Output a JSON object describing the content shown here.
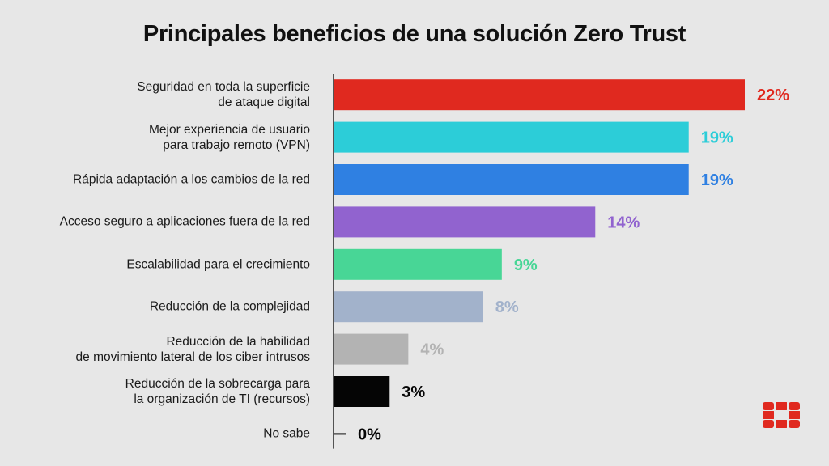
{
  "chart_data": {
    "type": "bar",
    "orientation": "horizontal",
    "title": "Principales beneficios de una solución Zero Trust",
    "xlabel": "",
    "ylabel": "",
    "xlim": [
      0,
      22
    ],
    "grid": false,
    "categories": [
      "Seguridad en toda la superficie\nde ataque digital",
      "Mejor experiencia de usuario\npara trabajo remoto (VPN)",
      "Rápida adaptación a los cambios de la red",
      "Acceso seguro a aplicaciones fuera de la red",
      "Escalabilidad para el crecimiento",
      "Reducción de la complejidad",
      "Reducción de la habilidad\nde movimiento lateral de los ciber intrusos",
      "Reducción de la sobrecarga para\nla organización de TI (recursos)",
      "No sabe"
    ],
    "values": [
      22,
      19,
      19,
      14,
      9,
      8,
      4,
      3,
      0
    ],
    "data_labels": [
      "22%",
      "19%",
      "19%",
      "14%",
      "9%",
      "8%",
      "4%",
      "3%",
      "0%"
    ],
    "colors": [
      "#e0291f",
      "#2ccdd8",
      "#2f80e2",
      "#9163cf",
      "#48d696",
      "#a2b2cb",
      "#b3b3b3",
      "#050505",
      "#050505"
    ]
  },
  "logo": {
    "color": "#e0291f"
  }
}
